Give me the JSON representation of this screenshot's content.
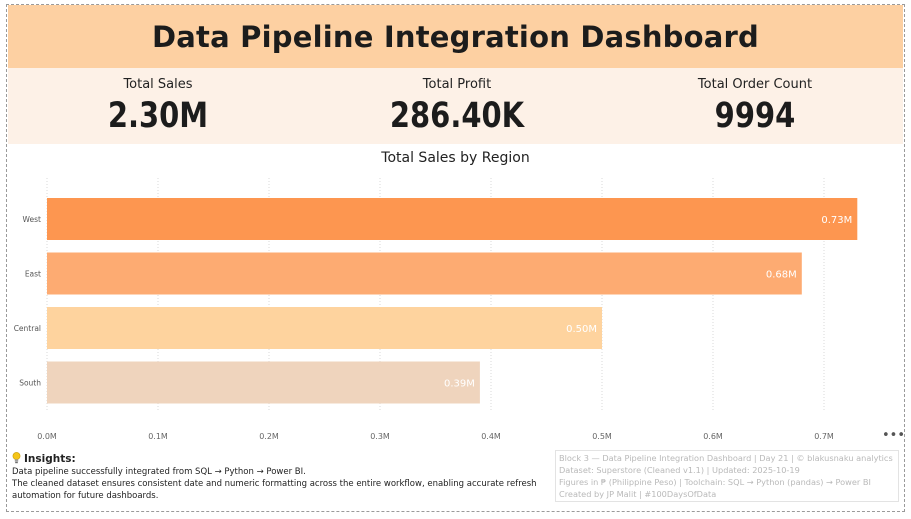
{
  "dashboard": {
    "title": "Data Pipeline Integration Dashboard"
  },
  "kpis": [
    {
      "label": "Total Sales",
      "value": "2.30M"
    },
    {
      "label": "Total Profit",
      "value": "286.40K"
    },
    {
      "label": "Total Order Count",
      "value": "9994"
    }
  ],
  "chart_data": {
    "type": "bar",
    "orientation": "horizontal",
    "title": "Total Sales by Region",
    "categories": [
      "West",
      "East",
      "Central",
      "South"
    ],
    "values": [
      0.73,
      0.68,
      0.5,
      0.39
    ],
    "value_labels": [
      "0.73M",
      "0.68M",
      "0.50M",
      "0.39M"
    ],
    "bar_colors": [
      "#fd9650",
      "#fdab72",
      "#fed39e",
      "#efd4bd"
    ],
    "xlim": [
      0,
      0.75
    ],
    "xticks": [
      0,
      0.1,
      0.2,
      0.3,
      0.4,
      0.5,
      0.6,
      0.7
    ],
    "xtick_labels": [
      "0.0M",
      "0.1M",
      "0.2M",
      "0.3M",
      "0.4M",
      "0.5M",
      "0.6M",
      "0.7M"
    ],
    "xlabel": "",
    "ylabel": "",
    "grid": "vertical-dotted",
    "legend": "none"
  },
  "insights": {
    "title": "Insights:",
    "lines": [
      "Data pipeline successfully integrated from SQL → Python → Power BI.",
      "The cleaned dataset ensures consistent date and numeric formatting across the entire workflow, enabling accurate refresh",
      "automation for future dashboards."
    ]
  },
  "footer": {
    "lines": [
      "Block 3 — Data Pipeline Integration Dashboard | Day 21 | © blakusnaku analytics",
      "Dataset: Superstore (Cleaned v1.1) | Updated: 2025-10-19",
      "Figures in ₱ (Philippine Peso) | Toolchain: SQL → Python (pandas) → Power BI",
      "Created by JP Malit | #100DaysOfData"
    ]
  },
  "more_options": "•••",
  "colors": {
    "header_bg": "#fdd0a2",
    "kpi_bg": "#fdf1e7"
  },
  "icons": {
    "insights": "lightbulb-icon",
    "more": "more-options-icon"
  }
}
